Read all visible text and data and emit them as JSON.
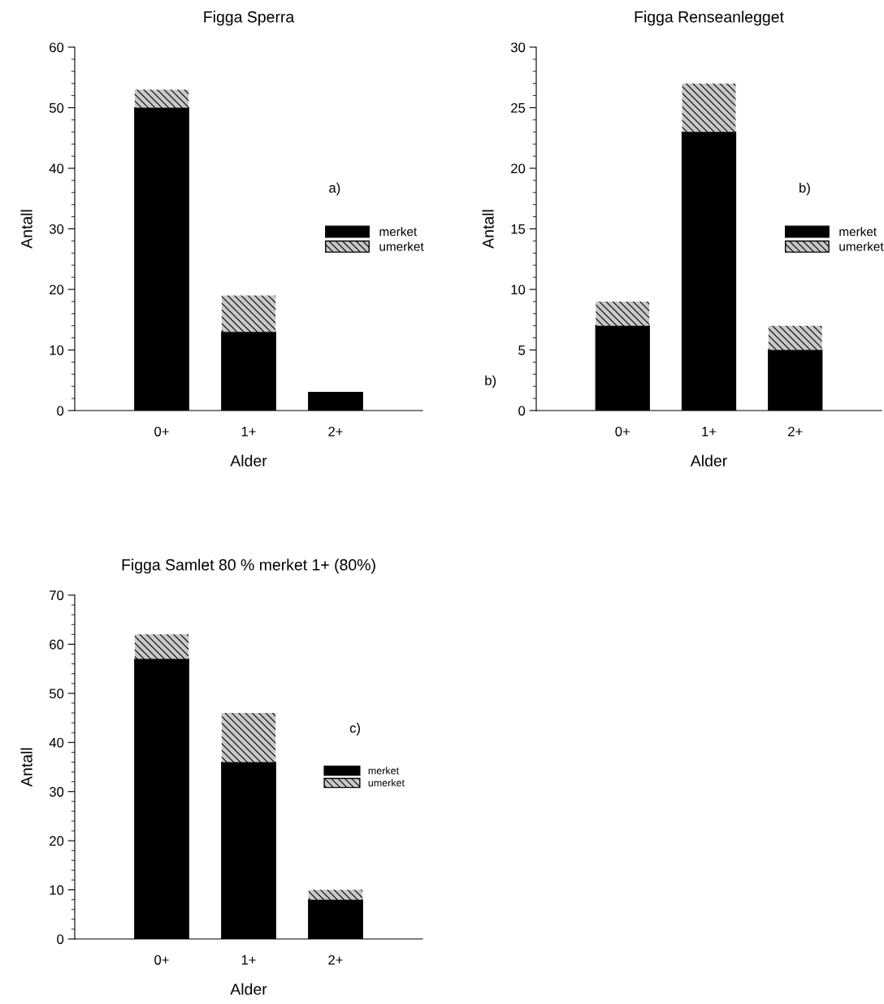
{
  "chart_data": [
    {
      "type": "bar",
      "title": "Figga Sperra",
      "xlabel": "Alder",
      "ylabel": "Antall",
      "categories": [
        "0+",
        "1+",
        "2+"
      ],
      "stacked": true,
      "legend": "right",
      "ylim": [
        0,
        60
      ],
      "yticks": [
        0,
        10,
        20,
        30,
        40,
        50,
        60
      ],
      "annotations": [
        "a)"
      ],
      "series": [
        {
          "name": "merket",
          "color": "#000000",
          "values": [
            50,
            13,
            3
          ]
        },
        {
          "name": "umerket",
          "color": "#c8c8c8",
          "values": [
            3,
            6,
            0
          ]
        }
      ]
    },
    {
      "type": "bar",
      "title": "Figga Renseanlegget",
      "xlabel": "Alder",
      "ylabel": "Antall",
      "categories": [
        "0+",
        "1+",
        "2+"
      ],
      "stacked": true,
      "legend": "right",
      "ylim": [
        0,
        30
      ],
      "yticks": [
        0,
        5,
        10,
        15,
        20,
        25,
        30
      ],
      "annotations": [
        "b)",
        "b)"
      ],
      "series": [
        {
          "name": "merket",
          "color": "#000000",
          "values": [
            7,
            23,
            5
          ]
        },
        {
          "name": "umerket",
          "color": "#c8c8c8",
          "values": [
            2,
            4,
            2
          ]
        }
      ]
    },
    {
      "type": "bar",
      "title": "Figga Samlet 80 % merket 1+ (80%)",
      "xlabel": "Alder",
      "ylabel": "Antall",
      "categories": [
        "0+",
        "1+",
        "2+"
      ],
      "stacked": true,
      "legend": "right",
      "ylim": [
        0,
        70
      ],
      "yticks": [
        0,
        10,
        20,
        30,
        40,
        50,
        60,
        70
      ],
      "annotations": [
        "c)"
      ],
      "series": [
        {
          "name": "merket",
          "color": "#000000",
          "values": [
            57,
            36,
            8
          ]
        },
        {
          "name": "umerket",
          "color": "#c8c8c8",
          "values": [
            5,
            10,
            2
          ]
        }
      ]
    }
  ]
}
